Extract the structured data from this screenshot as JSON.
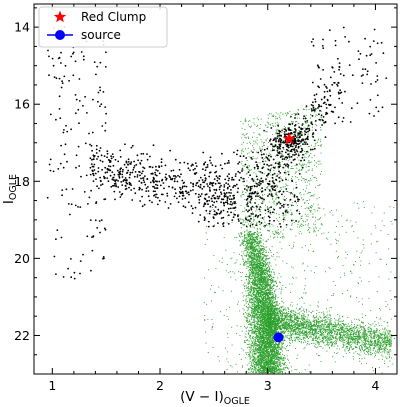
{
  "chart_data": {
    "type": "scatter",
    "title": "",
    "xlabel": {
      "main": "(V − I)",
      "sub": "OGLE"
    },
    "ylabel": {
      "main": "I",
      "sub": "OGLE"
    },
    "xlim": [
      0.83,
      4.2
    ],
    "ylim": [
      23.0,
      13.4
    ],
    "y_inverted": true,
    "grid": false,
    "legend_position": "top-left",
    "xticks": [
      1,
      2,
      3,
      4
    ],
    "yticks": [
      14,
      16,
      18,
      20,
      22
    ],
    "series": [
      {
        "kind": "background_field",
        "color": "#000000",
        "marker": "dot",
        "regions": [
          {
            "x_range": [
              0.95,
              1.5
            ],
            "y_range": [
              14.0,
              20.6
            ],
            "approx_points": 150
          },
          {
            "x_range": [
              1.35,
              2.7
            ],
            "y_range": [
              16.4,
              19.6
            ],
            "approx_points": 500
          },
          {
            "x_range": [
              2.4,
              3.3
            ],
            "y_range": [
              17.2,
              19.2
            ],
            "approx_points": 250
          },
          {
            "x_range": [
              2.8,
              3.7
            ],
            "y_range": [
              14.8,
              18.6
            ],
            "approx_points": 450
          },
          {
            "x_range": [
              3.4,
              4.1
            ],
            "y_range": [
              14.0,
              16.5
            ],
            "approx_points": 80
          }
        ]
      },
      {
        "kind": "hst_field",
        "color": "#2ca02c",
        "marker": "dot",
        "description_ranges": {
          "sequence_x": [
            2.75,
            3.05
          ],
          "sequence_y": [
            19.2,
            23.0
          ],
          "red_extension_x": [
            3.05,
            4.15
          ],
          "red_extension_y": [
            21.0,
            23.0
          ],
          "clump_region_x": [
            2.7,
            3.5
          ],
          "clump_region_y": [
            16.0,
            19.0
          ]
        },
        "approx_points": 9000
      },
      {
        "name": "Red Clump",
        "kind": "point",
        "color": "#ff0000",
        "marker": "star",
        "x": 3.2,
        "y": 16.9
      },
      {
        "name": "source",
        "kind": "point",
        "color": "#0000ff",
        "marker": "circle",
        "x": 3.1,
        "y": 22.05
      }
    ],
    "legend": [
      {
        "label": "Red Clump",
        "color": "#ff0000",
        "marker": "star"
      },
      {
        "label": "source",
        "color": "#0000ff",
        "marker": "circle"
      }
    ]
  }
}
